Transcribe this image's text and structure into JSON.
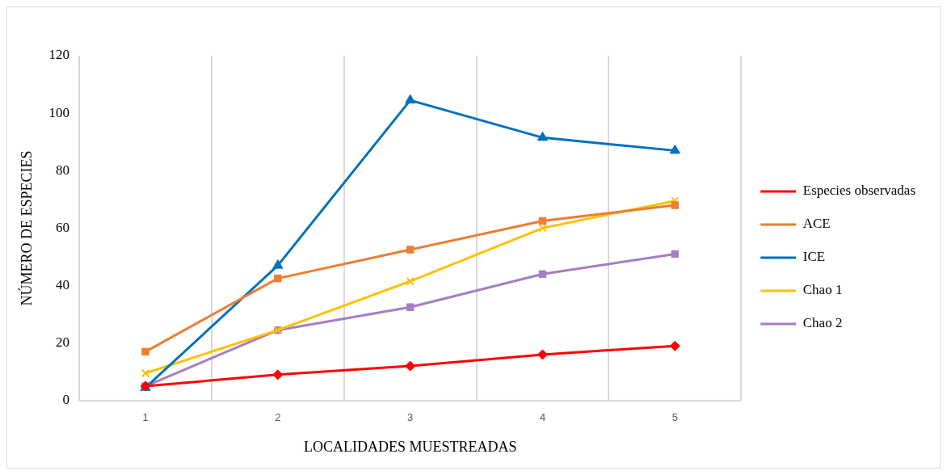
{
  "chart_data": {
    "type": "line",
    "xlabel": "LOCALIDADES MUESTREADAS",
    "ylabel": "NÚMERO DE ESPECIES",
    "categories": [
      "1",
      "2",
      "3",
      "4",
      "5"
    ],
    "ylim": [
      0,
      120
    ],
    "yticks": [
      0,
      20,
      40,
      60,
      80,
      100,
      120
    ],
    "grid": "x",
    "legend": "right",
    "series": [
      {
        "name": "Especies observadas",
        "color": "#ff0000",
        "marker": "diamond",
        "values": [
          5,
          9,
          12,
          16,
          19
        ]
      },
      {
        "name": "ACE",
        "color": "#ed7d31",
        "marker": "square",
        "values": [
          17,
          42.5,
          52.5,
          62.5,
          68
        ]
      },
      {
        "name": "ICE",
        "color": "#0070c0",
        "marker": "triangle",
        "values": [
          4.5,
          47,
          104.5,
          91.5,
          87
        ]
      },
      {
        "name": "Chao 1",
        "color": "#ffc000",
        "marker": "cross",
        "values": [
          9.5,
          24.5,
          41.5,
          60,
          69.5
        ]
      },
      {
        "name": "Chao 2",
        "color": "#a77dc2",
        "marker": "square",
        "values": [
          5,
          24.5,
          32.5,
          44,
          51
        ]
      }
    ]
  }
}
